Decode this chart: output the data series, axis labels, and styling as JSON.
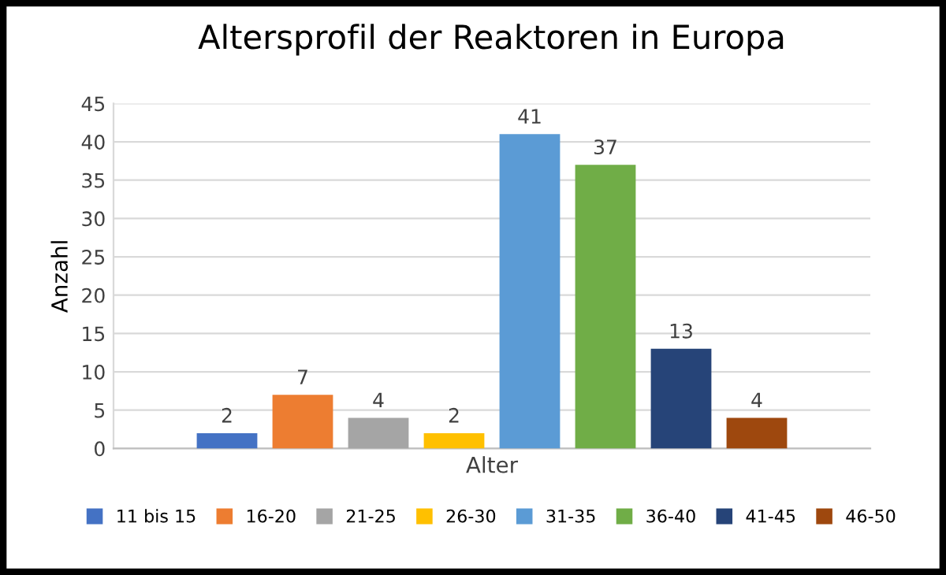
{
  "chart_data": {
    "type": "bar",
    "title": "Altersprofil der Reaktoren in Europa",
    "ylabel": "Anzahl",
    "categories": [
      "Alter"
    ],
    "series": [
      {
        "name": "11 bis 15",
        "color": "#4472c4",
        "values": [
          2
        ]
      },
      {
        "name": "16-20",
        "color": "#ed7d31",
        "values": [
          7
        ]
      },
      {
        "name": "21-25",
        "color": "#a5a5a5",
        "values": [
          4
        ]
      },
      {
        "name": "26-30",
        "color": "#ffc000",
        "values": [
          2
        ]
      },
      {
        "name": "31-35",
        "color": "#5b9bd5",
        "values": [
          41
        ]
      },
      {
        "name": "36-40",
        "color": "#70ad47",
        "values": [
          37
        ]
      },
      {
        "name": "41-45",
        "color": "#264478",
        "values": [
          13
        ]
      },
      {
        "name": "46-50",
        "color": "#9e480e",
        "values": [
          4
        ]
      }
    ],
    "ylim": [
      0,
      45
    ],
    "yticks": [
      0,
      5,
      10,
      15,
      20,
      25,
      30,
      35,
      40,
      45
    ],
    "grid": "y",
    "legend": "bottom",
    "data_labels": true
  }
}
